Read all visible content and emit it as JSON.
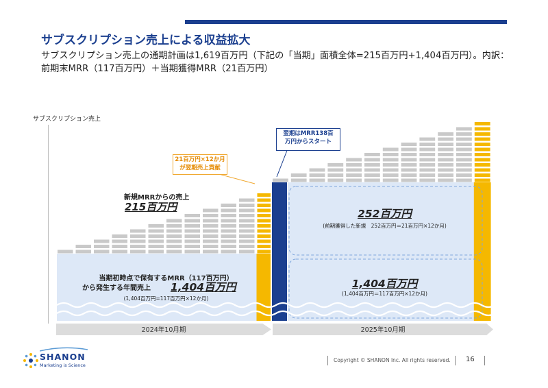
{
  "header": {
    "title": "サブスクリプション売上による収益拡大",
    "subtitle": "サブスクリプション売上の通期計画は1,619百万円（下記の「当期」面積全体=215百万円+1,404百万円）。内訳：前期末MRR（117百万円）＋当期獲得MRR（21百万円）"
  },
  "chart": {
    "y_label": "サブスクリプション売上",
    "callout_orange": "21百万円×12か月\nが翌期売上貢献",
    "callout_blue": "翌期はMRR138百\n万円からスタート",
    "new_mrr_label": "新規MRRからの売上",
    "new_mrr_value": "215百万円",
    "hold_line1": "当期初時点で保有するMRR（117百万円）",
    "hold_line2": "から発生する年間売上",
    "hold_value": "1,404百万円",
    "hold_note": "(1,404百万円=117百万円×12か月)",
    "next_new_value": "252百万円",
    "next_new_note": "(前期獲得した新規　252百万円＝21百万円×12か月)",
    "next_hold_value": "1,404百万円",
    "next_hold_note": "(1,404百万円＝117百万円×12か月)",
    "period_left": "2024年10月期",
    "period_right": "2025年10月期",
    "colors": {
      "gray": "#c9c9c9",
      "yellow": "#f5b800",
      "navy": "#1b3f8f",
      "lightblue": "#dde8f7"
    }
  },
  "footer": {
    "logo": "SHANON",
    "tagline": "Marketing is Science",
    "copyright": "Copyright © SHANON Inc. All rights reserved.",
    "page": "16"
  }
}
